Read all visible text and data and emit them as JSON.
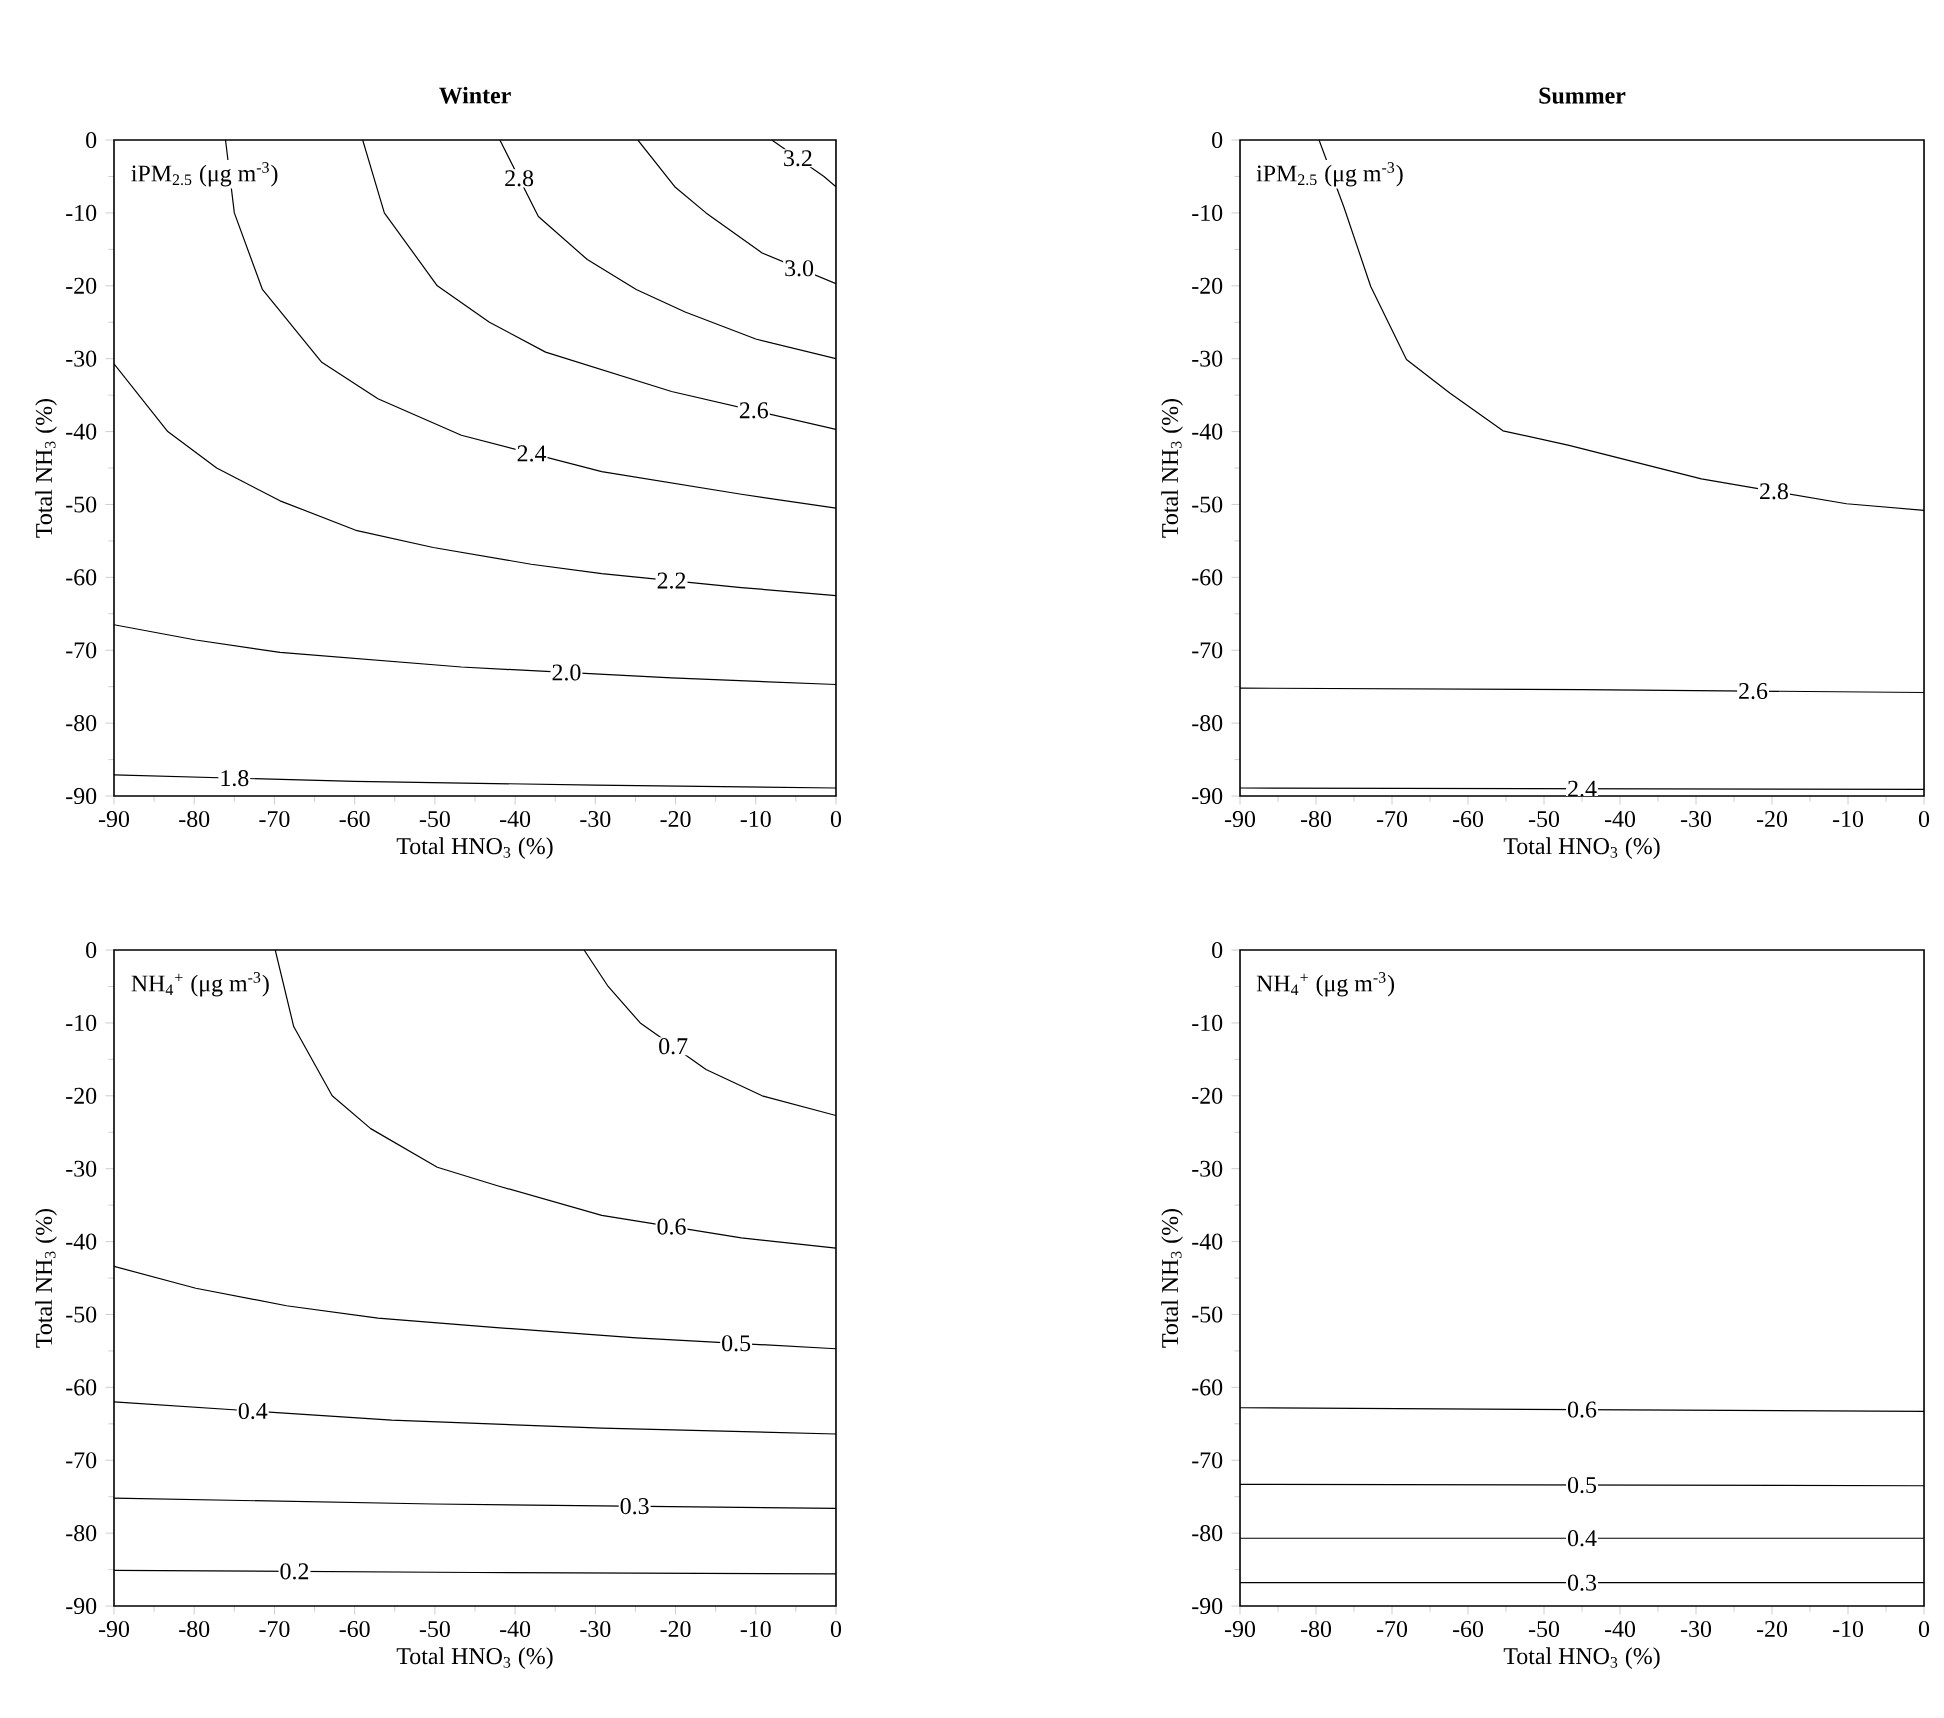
{
  "chart_data": [
    {
      "type": "line",
      "title": "Winter",
      "xlabel": "Total HNO$_{3}$ (%)",
      "ylabel": "Total NH$_{3}$ (%)",
      "annotations": [
        "iPM$_{2.5}$ (μg m$^{-3}$)"
      ],
      "xlim": [
        -90,
        0
      ],
      "ylim": [
        -90,
        0
      ],
      "xticks": [
        -90,
        -80,
        -70,
        -60,
        -50,
        -40,
        -30,
        -20,
        -10,
        0
      ],
      "yticks": [
        -90,
        -80,
        -70,
        -60,
        -50,
        -40,
        -30,
        -20,
        -10,
        0
      ],
      "series": [
        {
          "name": "1.8",
          "color": "#000000",
          "x": [
            -90,
            -60,
            -30,
            0
          ],
          "values": [
            -87.1,
            -88,
            -88.5,
            -88.9
          ]
        },
        {
          "name": "2.0",
          "color": "#000000",
          "x": [
            -90,
            -79.8,
            -69.3,
            -46.7,
            -20.5,
            0
          ],
          "values": [
            -66.5,
            -68.6,
            -70.3,
            -72.3,
            -73.8,
            -74.7
          ]
        },
        {
          "name": "2.2",
          "color": "#000000",
          "x": [
            -90,
            -83.3,
            -77.2,
            -69.3,
            -59.7,
            -50.2,
            -38,
            -29.2,
            -11.8,
            0
          ],
          "values": [
            -30.7,
            -40,
            -45,
            -49.5,
            -53.6,
            -55.9,
            -58.2,
            -59.5,
            -61.4,
            -62.5
          ]
        },
        {
          "name": "2.4",
          "color": "#000000",
          "x": [
            -76.1,
            -75,
            -71.5,
            -64.1,
            -57.1,
            -46.7,
            -29.2,
            -11.8,
            0
          ],
          "values": [
            0,
            -10,
            -20.5,
            -30.5,
            -35.5,
            -40.5,
            -45.5,
            -48.6,
            -50.5
          ]
        },
        {
          "name": "2.6",
          "color": "#000000",
          "x": [
            -59,
            -56.3,
            -49.7,
            -43.2,
            -36.2,
            -20.5,
            0
          ],
          "values": [
            0,
            -10,
            -20,
            -25,
            -29.1,
            -34.5,
            -39.7
          ]
        },
        {
          "name": "2.8",
          "color": "#000000",
          "x": [
            -41.9,
            -37.1,
            -31,
            -24.9,
            -18.8,
            -10,
            0
          ],
          "values": [
            0,
            -10.5,
            -16.4,
            -20.5,
            -23.6,
            -27.3,
            -30
          ]
        },
        {
          "name": "3.0",
          "color": "#000000",
          "x": [
            -24.7,
            -20.1,
            -16.2,
            -9.2,
            0
          ],
          "values": [
            0,
            -6.4,
            -10,
            -15.5,
            -19.7
          ]
        },
        {
          "name": "3.2",
          "color": "#000000",
          "x": [
            -8,
            -1.5,
            0
          ],
          "values": [
            0,
            -5,
            -6.4
          ]
        }
      ]
    },
    {
      "type": "line",
      "title": "Summer",
      "xlabel": "Total HNO$_{3}$ (%)",
      "ylabel": "Total NH$_{3}$ (%)",
      "annotations": [
        "iPM$_{2.5}$ (μg m$^{-3}$)"
      ],
      "xlim": [
        -90,
        0
      ],
      "ylim": [
        -90,
        0
      ],
      "xticks": [
        -90,
        -80,
        -70,
        -60,
        -50,
        -40,
        -30,
        -20,
        -10,
        0
      ],
      "yticks": [
        -90,
        -80,
        -70,
        -60,
        -50,
        -40,
        -30,
        -20,
        -10,
        0
      ],
      "series": [
        {
          "name": "2.8",
          "color": "#000000",
          "x": [
            -79.6,
            -76.3,
            -72.8,
            -68.1,
            -62.4,
            -55.4,
            -46.7,
            -29.3,
            -10.2,
            0
          ],
          "values": [
            0,
            -9.3,
            -20.1,
            -30.1,
            -34.7,
            -39.9,
            -41.9,
            -46.5,
            -49.9,
            -50.8
          ]
        },
        {
          "name": "2.6",
          "color": "#000000",
          "x": [
            -90,
            -45,
            0
          ],
          "values": [
            -75.2,
            -75.4,
            -75.8
          ]
        },
        {
          "name": "2.4",
          "color": "#000000",
          "x": [
            -90,
            0
          ],
          "values": [
            -88.9,
            -89.1
          ]
        }
      ]
    },
    {
      "type": "line",
      "xlabel": "Total HNO$_{3}$ (%)",
      "ylabel": "Total NH$_{3}$ (%)",
      "annotations": [
        "NH$_{4}$$^{+}$ (μg m$^{-3}$)"
      ],
      "xlim": [
        -90,
        0
      ],
      "ylim": [
        -90,
        0
      ],
      "xticks": [
        -90,
        -80,
        -70,
        -60,
        -50,
        -40,
        -30,
        -20,
        -10,
        0
      ],
      "yticks": [
        -90,
        -80,
        -70,
        -60,
        -50,
        -40,
        -30,
        -20,
        -10,
        0
      ],
      "series": [
        {
          "name": "0.2",
          "color": "#000000",
          "x": [
            -90,
            -45,
            0
          ],
          "values": [
            -85.1,
            -85.4,
            -85.6
          ]
        },
        {
          "name": "0.3",
          "color": "#000000",
          "x": [
            -90,
            -50.2,
            0
          ],
          "values": [
            -75.2,
            -76,
            -76.6
          ]
        },
        {
          "name": "0.4",
          "color": "#000000",
          "x": [
            -90,
            -55.4,
            -29.2,
            0
          ],
          "values": [
            -62,
            -64.5,
            -65.6,
            -66.4
          ]
        },
        {
          "name": "0.5",
          "color": "#000000",
          "x": [
            -90,
            -79.8,
            -68.5,
            -57.1,
            -42.3,
            -24.9,
            0
          ],
          "values": [
            -43.4,
            -46.4,
            -48.8,
            -50.5,
            -51.8,
            -53.2,
            -54.7
          ]
        },
        {
          "name": "0.6",
          "color": "#000000",
          "x": [
            -69.9,
            -67.6,
            -62.8,
            -58,
            -49.7,
            -42.3,
            -29.2,
            -11.8,
            0
          ],
          "values": [
            0,
            -10.5,
            -20,
            -24.5,
            -29.8,
            -32.3,
            -36.4,
            -39.5,
            -40.9
          ]
        },
        {
          "name": "0.7",
          "color": "#000000",
          "x": [
            -31.4,
            -28.4,
            -24.4,
            -16.2,
            -9.2,
            0
          ],
          "values": [
            0,
            -5,
            -10,
            -16.4,
            -20,
            -22.7
          ]
        }
      ]
    },
    {
      "type": "line",
      "xlabel": "Total HNO$_{3}$ (%)",
      "ylabel": "Total NH$_{3}$ (%)",
      "annotations": [
        "NH$_{4}$$^{+}$ (μg m$^{-3}$)"
      ],
      "xlim": [
        -90,
        0
      ],
      "ylim": [
        -90,
        0
      ],
      "xticks": [
        -90,
        -80,
        -70,
        -60,
        -50,
        -40,
        -30,
        -20,
        -10,
        0
      ],
      "yticks": [
        -90,
        -80,
        -70,
        -60,
        -50,
        -40,
        -30,
        -20,
        -10,
        0
      ],
      "series": [
        {
          "name": "0.6",
          "color": "#000000",
          "x": [
            -90,
            0
          ],
          "values": [
            -62.8,
            -63.3
          ]
        },
        {
          "name": "0.5",
          "color": "#000000",
          "x": [
            -90,
            0
          ],
          "values": [
            -73.3,
            -73.5
          ]
        },
        {
          "name": "0.4",
          "color": "#000000",
          "x": [
            -90,
            0
          ],
          "values": [
            -80.7,
            -80.7
          ]
        },
        {
          "name": "0.3",
          "color": "#000000",
          "x": [
            -90,
            0
          ],
          "values": [
            -86.8,
            -86.8
          ]
        }
      ]
    }
  ]
}
